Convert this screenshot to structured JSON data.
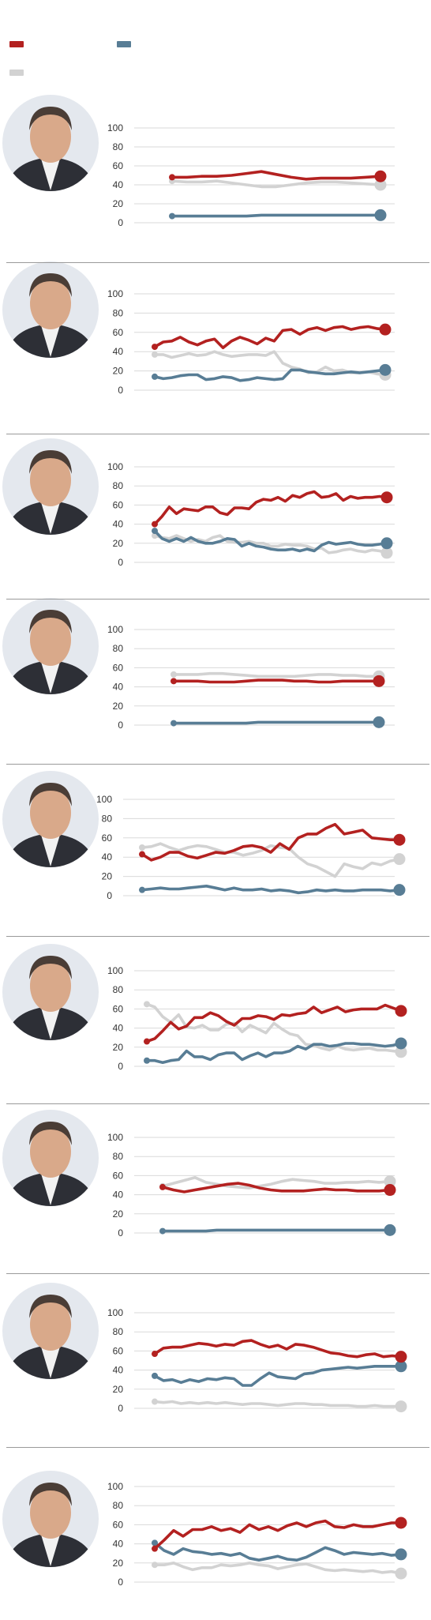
{
  "colors": {
    "red": "#b32120",
    "blue": "#587d95",
    "gray": "#d2d2d2",
    "grid": "#dadada",
    "sep": "#9a9a9a"
  },
  "legend": [
    {
      "color": "#b32120",
      "label": ""
    },
    {
      "color": "#587d95",
      "label": ""
    },
    {
      "color": "#d2d2d2",
      "label": ""
    }
  ],
  "chart_data": [
    {
      "type": "line",
      "title": "",
      "ylim": [
        0,
        100
      ],
      "yticks": [
        0,
        20,
        40,
        60,
        80,
        100
      ],
      "grid": true,
      "series": [
        {
          "color": "#b32120",
          "values": [
            48,
            48,
            49,
            49,
            50,
            52,
            54,
            51,
            48,
            46,
            47,
            47,
            47,
            48,
            49
          ]
        },
        {
          "color": "#d2d2d2",
          "values": [
            44,
            43,
            43,
            44,
            42,
            40,
            38,
            38,
            40,
            42,
            43,
            43,
            42,
            41,
            40
          ]
        },
        {
          "color": "#587d95",
          "values": [
            7,
            7,
            7,
            7,
            7,
            7,
            8,
            8,
            8,
            8,
            8,
            8,
            8,
            8,
            8
          ]
        }
      ]
    },
    {
      "type": "line",
      "title": "",
      "ylim": [
        0,
        100
      ],
      "yticks": [
        0,
        20,
        40,
        60,
        80,
        100
      ],
      "grid": true,
      "series": [
        {
          "color": "#b32120",
          "values": [
            45,
            50,
            51,
            55,
            50,
            47,
            51,
            53,
            44,
            51,
            55,
            52,
            48,
            54,
            51,
            62,
            63,
            58,
            63,
            65,
            62,
            65,
            66,
            63,
            65,
            66,
            64,
            63
          ]
        },
        {
          "color": "#d2d2d2",
          "values": [
            37,
            37,
            34,
            36,
            38,
            36,
            37,
            40,
            37,
            35,
            36,
            37,
            37,
            36,
            40,
            28,
            24,
            22,
            18,
            19,
            24,
            20,
            21,
            18,
            18,
            19,
            17,
            16
          ]
        },
        {
          "color": "#587d95",
          "values": [
            14,
            12,
            13,
            15,
            16,
            16,
            11,
            12,
            14,
            13,
            10,
            11,
            13,
            12,
            11,
            12,
            21,
            21,
            19,
            18,
            17,
            17,
            18,
            19,
            18,
            19,
            20,
            21
          ]
        }
      ]
    },
    {
      "type": "line",
      "title": "",
      "ylim": [
        0,
        100
      ],
      "yticks": [
        0,
        20,
        40,
        60,
        80,
        100
      ],
      "grid": true,
      "series": [
        {
          "color": "#b32120",
          "values": [
            40,
            48,
            58,
            51,
            56,
            55,
            54,
            58,
            58,
            52,
            50,
            57,
            57,
            56,
            63,
            66,
            65,
            68,
            64,
            70,
            68,
            72,
            74,
            68,
            69,
            72,
            65,
            69,
            67,
            68,
            68,
            69,
            68
          ]
        },
        {
          "color": "#d2d2d2",
          "values": [
            28,
            26,
            25,
            28,
            25,
            22,
            24,
            22,
            26,
            28,
            22,
            21,
            21,
            22,
            20,
            20,
            17,
            17,
            19,
            18,
            18,
            17,
            14,
            15,
            10,
            11,
            13,
            14,
            12,
            11,
            13,
            12,
            10
          ]
        },
        {
          "color": "#587d95",
          "values": [
            33,
            25,
            22,
            25,
            22,
            26,
            22,
            20,
            20,
            22,
            25,
            24,
            17,
            20,
            17,
            16,
            14,
            13,
            13,
            14,
            12,
            14,
            12,
            18,
            21,
            19,
            20,
            21,
            19,
            18,
            18,
            19,
            20
          ]
        }
      ]
    },
    {
      "type": "line",
      "title": "",
      "ylim": [
        0,
        100
      ],
      "yticks": [
        0,
        20,
        40,
        60,
        80,
        100
      ],
      "grid": true,
      "series": [
        {
          "color": "#b32120",
          "values": [
            46,
            46,
            46,
            45,
            45,
            45,
            46,
            47,
            47,
            47,
            46,
            46,
            45,
            45,
            46,
            46,
            46,
            46
          ]
        },
        {
          "color": "#d2d2d2",
          "values": [
            53,
            53,
            53,
            54,
            54,
            53,
            52,
            51,
            51,
            51,
            51,
            52,
            53,
            53,
            52,
            52,
            51,
            51
          ]
        },
        {
          "color": "#587d95",
          "values": [
            2,
            2,
            2,
            2,
            2,
            2,
            2,
            3,
            3,
            3,
            3,
            3,
            3,
            3,
            3,
            3,
            3,
            3
          ]
        }
      ]
    },
    {
      "type": "line",
      "title": "",
      "ylim": [
        0,
        100
      ],
      "yticks": [
        0,
        20,
        40,
        60,
        80,
        100
      ],
      "grid": true,
      "series": [
        {
          "color": "#b32120",
          "values": [
            43,
            37,
            40,
            45,
            45,
            41,
            39,
            42,
            45,
            44,
            47,
            51,
            52,
            50,
            45,
            54,
            48,
            60,
            64,
            64,
            70,
            74,
            64,
            66,
            68,
            60,
            59,
            58,
            58
          ]
        },
        {
          "color": "#d2d2d2",
          "values": [
            50,
            51,
            54,
            50,
            47,
            50,
            52,
            51,
            48,
            45,
            45,
            42,
            44,
            47,
            52,
            50,
            49,
            40,
            33,
            30,
            25,
            20,
            33,
            30,
            28,
            34,
            32,
            36,
            38
          ]
        },
        {
          "color": "#587d95",
          "values": [
            6,
            7,
            8,
            7,
            7,
            8,
            9,
            10,
            8,
            6,
            8,
            6,
            6,
            7,
            5,
            6,
            5,
            3,
            4,
            6,
            5,
            6,
            5,
            5,
            6,
            6,
            6,
            5,
            6
          ]
        }
      ]
    },
    {
      "type": "line",
      "title": "",
      "ylim": [
        0,
        100
      ],
      "yticks": [
        0,
        20,
        40,
        60,
        80,
        100
      ],
      "grid": true,
      "series": [
        {
          "color": "#b32120",
          "values": [
            26,
            29,
            37,
            46,
            39,
            42,
            51,
            51,
            56,
            53,
            47,
            43,
            50,
            50,
            53,
            52,
            49,
            54,
            53,
            55,
            56,
            62,
            56,
            59,
            62,
            57,
            59,
            60,
            60,
            60,
            64,
            61,
            58
          ]
        },
        {
          "color": "#d2d2d2",
          "values": [
            65,
            62,
            52,
            46,
            54,
            41,
            40,
            43,
            38,
            38,
            44,
            45,
            36,
            43,
            39,
            35,
            45,
            39,
            34,
            32,
            23,
            22,
            19,
            17,
            21,
            18,
            17,
            18,
            19,
            17,
            17,
            16,
            15
          ]
        },
        {
          "color": "#587d95",
          "values": [
            6,
            6,
            4,
            6,
            7,
            16,
            10,
            10,
            7,
            12,
            14,
            14,
            7,
            11,
            14,
            10,
            14,
            14,
            16,
            21,
            18,
            23,
            23,
            21,
            22,
            24,
            24,
            23,
            23,
            22,
            21,
            22,
            24
          ]
        }
      ]
    },
    {
      "type": "line",
      "title": "",
      "ylim": [
        0,
        100
      ],
      "yticks": [
        0,
        20,
        40,
        60,
        80,
        100
      ],
      "grid": true,
      "series": [
        {
          "color": "#b32120",
          "values": [
            48,
            45,
            43,
            45,
            47,
            49,
            51,
            52,
            50,
            47,
            45,
            44,
            44,
            44,
            45,
            46,
            45,
            45,
            44,
            44,
            44,
            45
          ]
        },
        {
          "color": "#d2d2d2",
          "values": [
            49,
            52,
            55,
            58,
            53,
            51,
            49,
            48,
            47,
            49,
            51,
            54,
            56,
            55,
            54,
            52,
            52,
            53,
            53,
            54,
            53,
            54
          ]
        },
        {
          "color": "#587d95",
          "values": [
            2,
            2,
            2,
            2,
            2,
            3,
            3,
            3,
            3,
            3,
            3,
            3,
            3,
            3,
            3,
            3,
            3,
            3,
            3,
            3,
            3,
            3
          ]
        }
      ]
    },
    {
      "type": "line",
      "title": "",
      "ylim": [
        0,
        100
      ],
      "yticks": [
        0,
        20,
        40,
        60,
        80,
        100
      ],
      "grid": true,
      "series": [
        {
          "color": "#b32120",
          "values": [
            57,
            63,
            64,
            64,
            66,
            68,
            67,
            65,
            67,
            66,
            70,
            71,
            67,
            64,
            66,
            62,
            67,
            66,
            64,
            61,
            58,
            57,
            55,
            54,
            56,
            57,
            54,
            55,
            54
          ]
        },
        {
          "color": "#d2d2d2",
          "values": [
            7,
            6,
            7,
            5,
            6,
            5,
            6,
            5,
            6,
            5,
            4,
            5,
            5,
            4,
            3,
            4,
            5,
            5,
            4,
            4,
            3,
            3,
            3,
            2,
            2,
            3,
            2,
            2,
            2
          ]
        },
        {
          "color": "#587d95",
          "values": [
            34,
            29,
            30,
            27,
            30,
            28,
            31,
            30,
            32,
            31,
            24,
            24,
            31,
            37,
            33,
            32,
            31,
            36,
            37,
            40,
            41,
            42,
            43,
            42,
            43,
            44,
            44,
            44,
            44
          ]
        }
      ]
    },
    {
      "type": "line",
      "title": "",
      "ylim": [
        0,
        100
      ],
      "yticks": [
        0,
        20,
        40,
        60,
        80,
        100
      ],
      "grid": true,
      "series": [
        {
          "color": "#b32120",
          "values": [
            35,
            44,
            54,
            48,
            55,
            55,
            58,
            54,
            56,
            52,
            60,
            55,
            58,
            54,
            59,
            62,
            58,
            62,
            64,
            58,
            57,
            60,
            58,
            58,
            60,
            62,
            62
          ]
        },
        {
          "color": "#d2d2d2",
          "values": [
            18,
            18,
            20,
            16,
            13,
            15,
            15,
            18,
            17,
            18,
            20,
            18,
            17,
            14,
            16,
            18,
            19,
            16,
            13,
            12,
            13,
            12,
            11,
            12,
            10,
            11,
            9
          ]
        },
        {
          "color": "#587d95",
          "values": [
            41,
            33,
            29,
            35,
            32,
            31,
            29,
            30,
            28,
            30,
            25,
            23,
            25,
            27,
            24,
            23,
            26,
            31,
            36,
            33,
            29,
            31,
            30,
            29,
            30,
            28,
            29
          ]
        }
      ]
    }
  ]
}
